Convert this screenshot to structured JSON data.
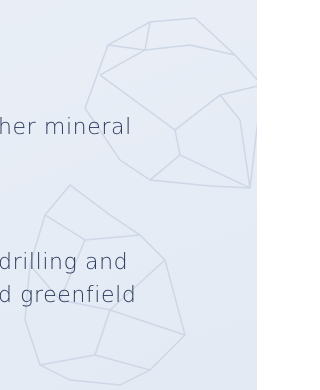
{
  "content": {
    "paragraphs": [
      {
        "lines": [
          "her mineral"
        ]
      },
      {
        "lines": [
          "drilling and",
          "d greenfield"
        ]
      }
    ]
  }
}
